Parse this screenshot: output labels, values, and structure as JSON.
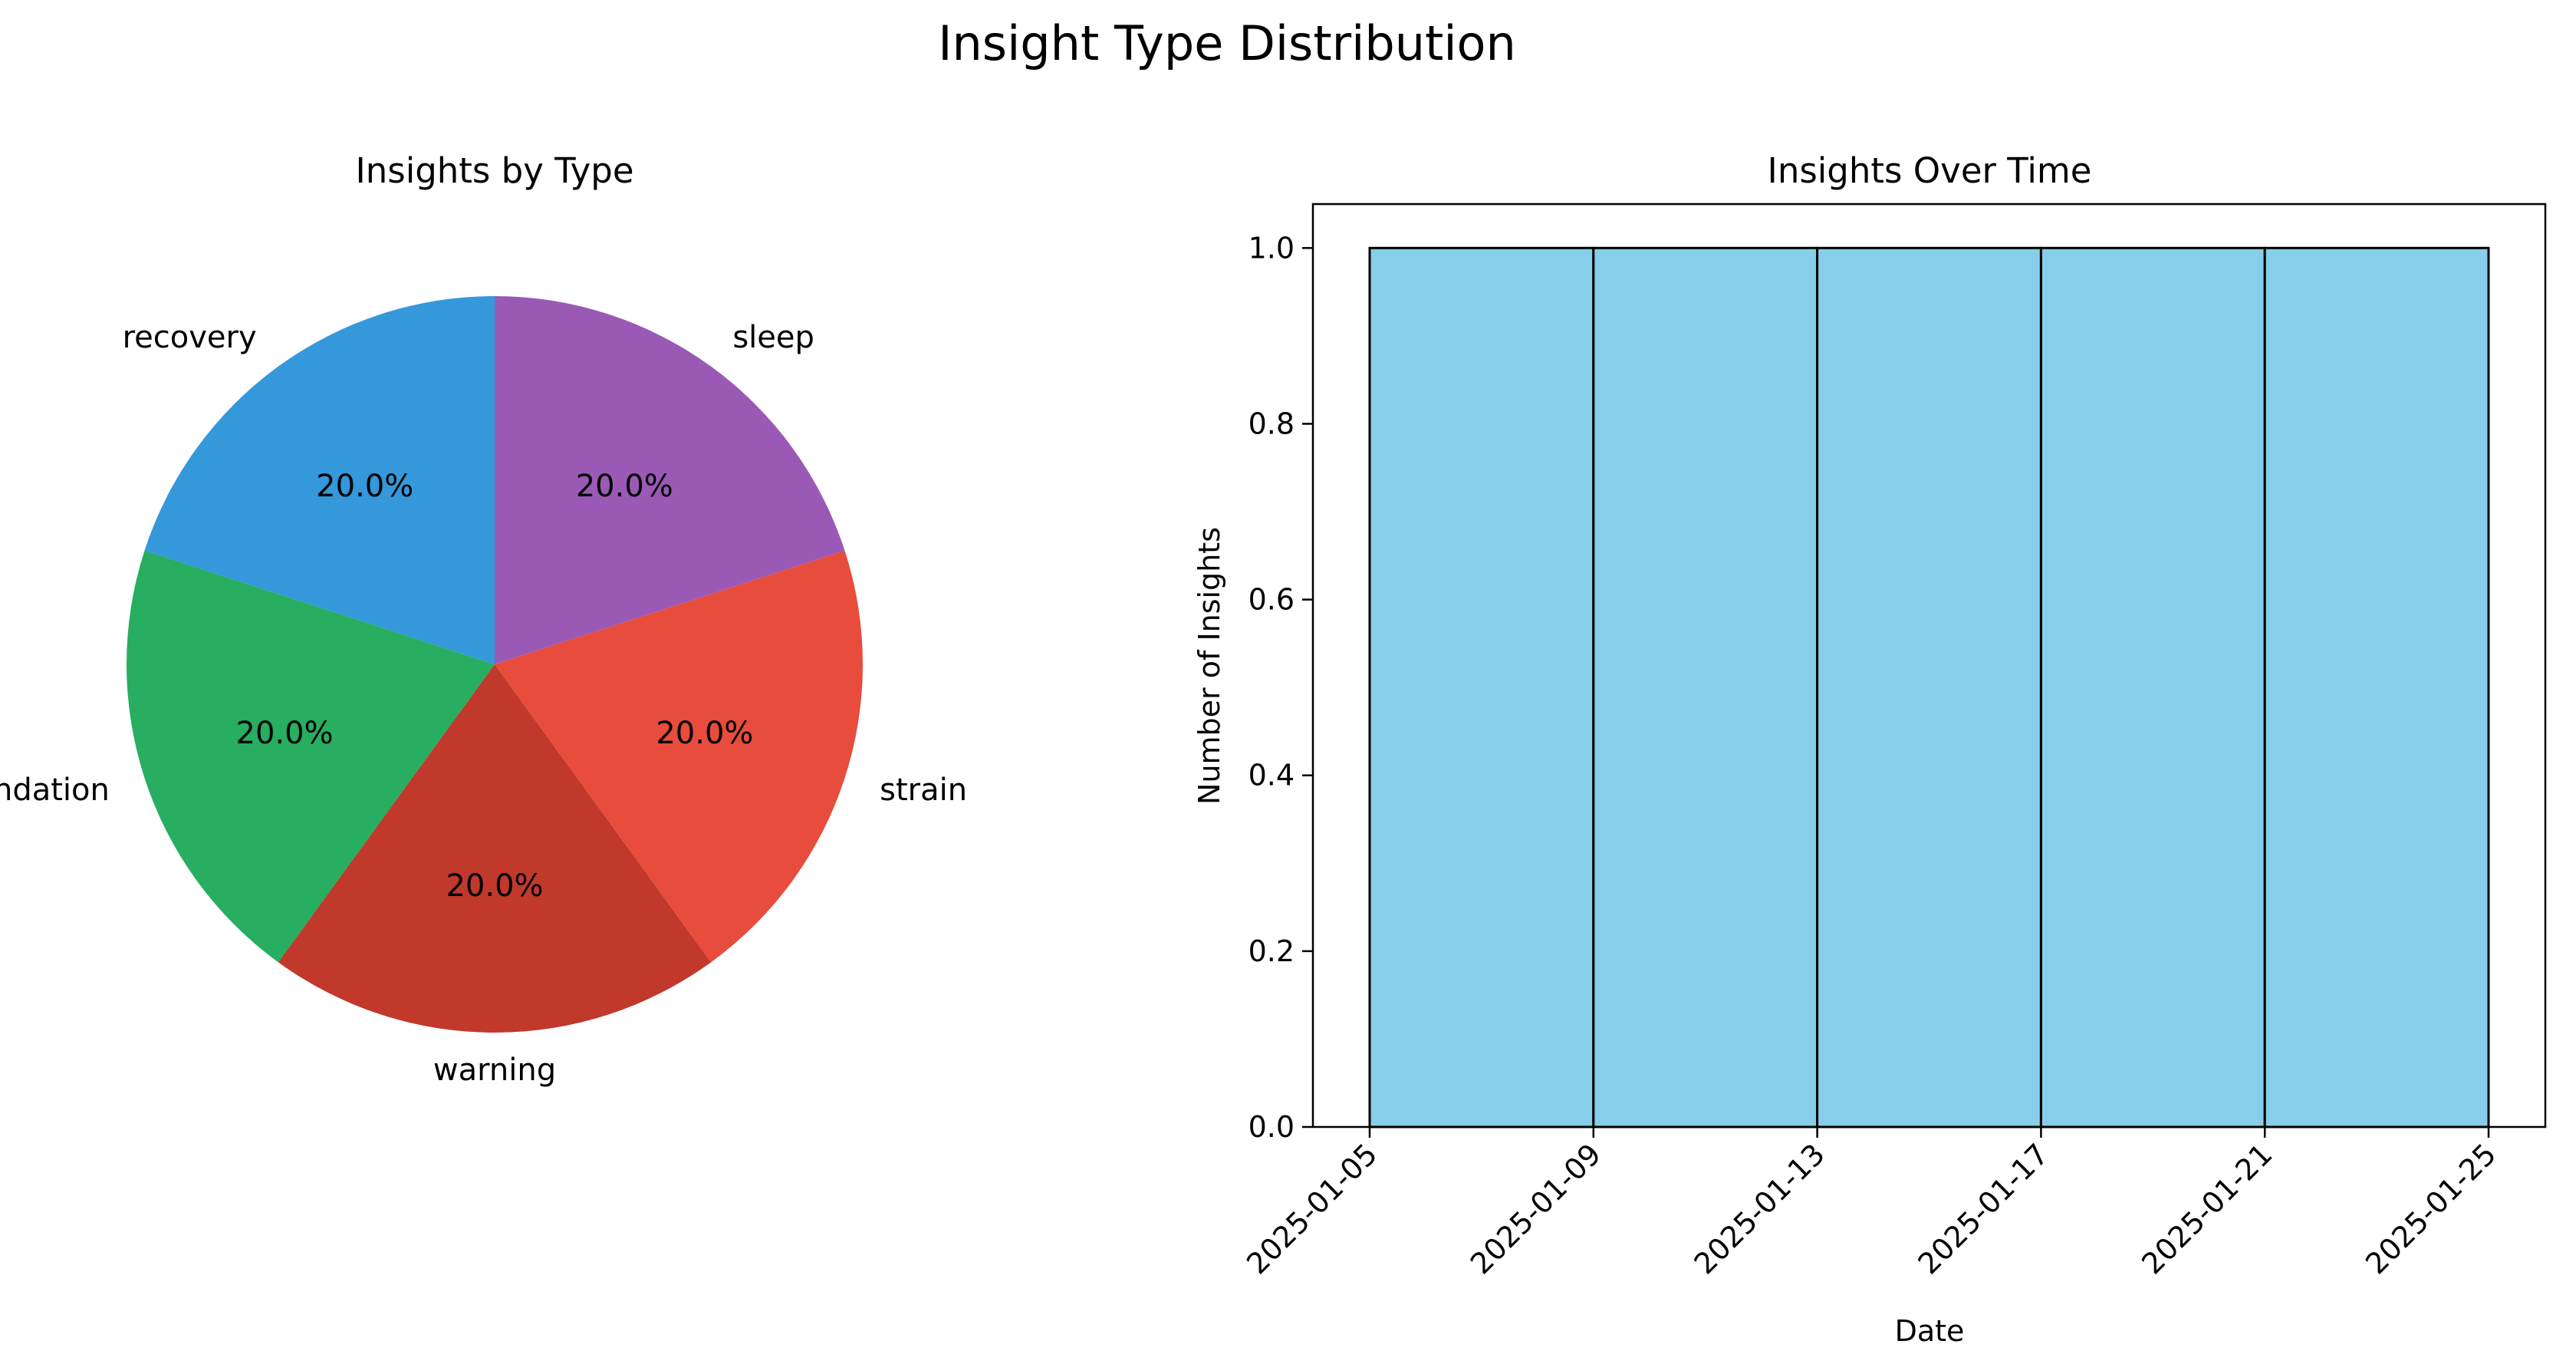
{
  "figure": {
    "title": "Insight Type Distribution"
  },
  "chart_data": [
    {
      "type": "pie",
      "title": "Insights by Type",
      "labels": [
        "recovery",
        "recommendation",
        "warning",
        "strain",
        "sleep"
      ],
      "values": [
        20.0,
        20.0,
        20.0,
        20.0,
        20.0
      ],
      "percent_labels": [
        "20.0%",
        "20.0%",
        "20.0%",
        "20.0%",
        "20.0%"
      ],
      "colors": [
        "#3498db",
        "#27ae60",
        "#c0392b",
        "#e74c3c",
        "#9b59b6"
      ]
    },
    {
      "type": "bar",
      "title": "Insights Over Time",
      "xlabel": "Date",
      "ylabel": "Number of Insights",
      "bins": [
        {
          "start": "2025-01-05",
          "end": "2025-01-09",
          "value": 1.0
        },
        {
          "start": "2025-01-09",
          "end": "2025-01-13",
          "value": 1.0
        },
        {
          "start": "2025-01-13",
          "end": "2025-01-17",
          "value": 1.0
        },
        {
          "start": "2025-01-17",
          "end": "2025-01-21",
          "value": 1.0
        },
        {
          "start": "2025-01-21",
          "end": "2025-01-25",
          "value": 1.0
        }
      ],
      "xticks": [
        "2025-01-05",
        "2025-01-09",
        "2025-01-13",
        "2025-01-17",
        "2025-01-21",
        "2025-01-25"
      ],
      "yticks": [
        "0.0",
        "0.2",
        "0.4",
        "0.6",
        "0.8",
        "1.0"
      ],
      "ylim": [
        0,
        1.05
      ],
      "bar_color": "#87ceeb",
      "edge_color": "#000000",
      "grid": false
    }
  ]
}
